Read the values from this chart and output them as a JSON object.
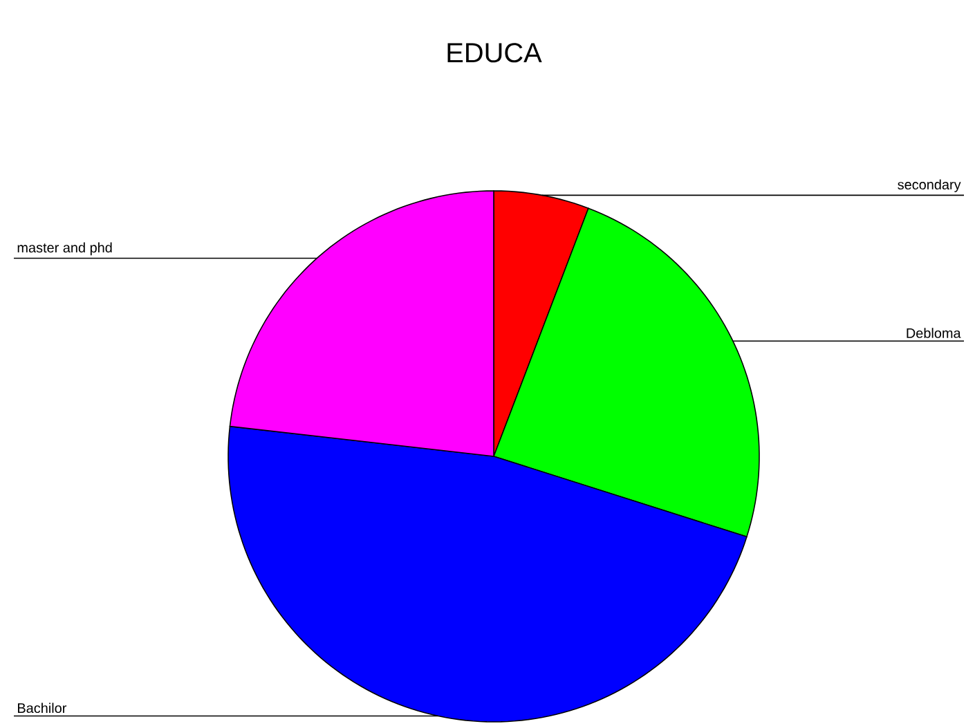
{
  "chart_data": {
    "type": "pie",
    "title": "EDUCA",
    "categories": [
      "secondary",
      "Debloma",
      "Bachilor",
      "master and phd"
    ],
    "values": [
      5.8,
      24.1,
      46.9,
      23.2
    ],
    "colors": [
      "#ff0000",
      "#00ff00",
      "#0000ff",
      "#ff00ff"
    ]
  }
}
